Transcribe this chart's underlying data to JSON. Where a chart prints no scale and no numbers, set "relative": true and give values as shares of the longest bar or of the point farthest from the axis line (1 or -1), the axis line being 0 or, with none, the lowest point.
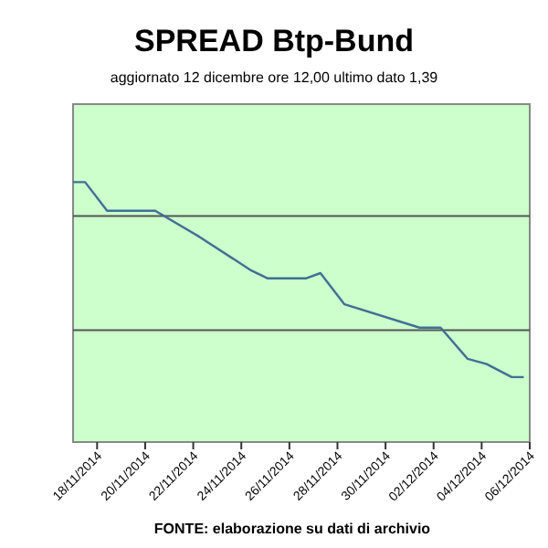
{
  "chart_data": {
    "type": "line",
    "title": "SPREAD Btp-Bund",
    "subtitle": "aggiornato 12 dicembre ore 12,00  ultimo dato  1,39",
    "annotations": [
      "FONTE: elaborazione su dati di archivio"
    ],
    "relative": true,
    "ref_lines": [
      {
        "axis": "y",
        "value": 0.87,
        "color": "#555555"
      },
      {
        "axis": "y",
        "value": 0.43,
        "color": "#555555"
      }
    ],
    "marker": "none",
    "line_style": "solid",
    "tick_labels": "x",
    "xlim": [
      "2014-11-17",
      "2014-12-06"
    ],
    "xticks": [
      {
        "value": "2014-11-18",
        "label": "18/11/2014"
      },
      {
        "value": "2014-11-20",
        "label": "20/11/2014"
      },
      {
        "value": "2014-11-22",
        "label": "22/11/2014"
      },
      {
        "value": "2014-11-24",
        "label": "24/11/2014"
      },
      {
        "value": "2014-11-26",
        "label": "26/11/2014"
      },
      {
        "value": "2014-11-28",
        "label": "28/11/2014"
      },
      {
        "value": "2014-11-30",
        "label": "30/11/2014"
      },
      {
        "value": "2014-12-02",
        "label": "02/12/2014"
      },
      {
        "value": "2014-12-04",
        "label": "04/12/2014"
      },
      {
        "value": "2014-12-06",
        "label": "06/12/2014"
      }
    ],
    "series": [
      {
        "color": "#3f6f95",
        "x": [
          "2014-11-17",
          "2014-11-17T12:00",
          "2014-11-18T10:00",
          "2014-11-20T10:00",
          "2014-11-22T06:00",
          "2014-11-24T10:00",
          "2014-11-25T02:00",
          "2014-11-26T17:00",
          "2014-11-27T07:00",
          "2014-11-28T07:00",
          "2014-12-01T10:00",
          "2014-12-02T07:00",
          "2014-12-03T10:00",
          "2014-12-04T05:00",
          "2014-12-05T06:00",
          "2014-12-05T18:00"
        ],
        "values": [
          1.0,
          1.0,
          0.89,
          0.89,
          0.79,
          0.66,
          0.63,
          0.63,
          0.65,
          0.53,
          0.44,
          0.44,
          0.32,
          0.3,
          0.25,
          0.25
        ]
      }
    ]
  }
}
